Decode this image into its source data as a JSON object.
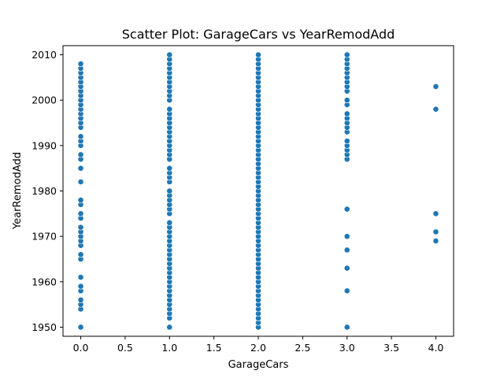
{
  "chart_data": {
    "type": "scatter",
    "title": "Scatter Plot: GarageCars vs YearRemodAdd",
    "xlabel": "GarageCars",
    "ylabel": "YearRemodAdd",
    "xlim": [
      -0.2,
      4.2
    ],
    "ylim": [
      1948,
      2012
    ],
    "xticks": [
      0.0,
      0.5,
      1.0,
      1.5,
      2.0,
      2.5,
      3.0,
      3.5,
      4.0
    ],
    "xtick_labels": [
      "0.0",
      "0.5",
      "1.0",
      "1.5",
      "2.0",
      "2.5",
      "3.0",
      "3.5",
      "4.0"
    ],
    "yticks": [
      1950,
      1960,
      1970,
      1980,
      1990,
      2000,
      2010
    ],
    "ytick_labels": [
      "1950",
      "1960",
      "1970",
      "1980",
      "1990",
      "2000",
      "2010"
    ],
    "grid": false,
    "marker_color": "#1f77b4",
    "series": [
      {
        "points": [
          [
            0,
            1950
          ],
          [
            0,
            1954
          ],
          [
            0,
            1955
          ],
          [
            0,
            1956
          ],
          [
            0,
            1958
          ],
          [
            0,
            1959
          ],
          [
            0,
            1961
          ],
          [
            0,
            1965
          ],
          [
            0,
            1966
          ],
          [
            0,
            1968
          ],
          [
            0,
            1969
          ],
          [
            0,
            1970
          ],
          [
            0,
            1971
          ],
          [
            0,
            1972
          ],
          [
            0,
            1974
          ],
          [
            0,
            1975
          ],
          [
            0,
            1977
          ],
          [
            0,
            1978
          ],
          [
            0,
            1982
          ],
          [
            0,
            1985
          ],
          [
            0,
            1987
          ],
          [
            0,
            1988
          ],
          [
            0,
            1990
          ],
          [
            0,
            1991
          ],
          [
            0,
            1992
          ],
          [
            0,
            1994
          ],
          [
            0,
            1995
          ],
          [
            0,
            1996
          ],
          [
            0,
            1997
          ],
          [
            0,
            1998
          ],
          [
            0,
            1999
          ],
          [
            0,
            2000
          ],
          [
            0,
            2001
          ],
          [
            0,
            2002
          ],
          [
            0,
            2003
          ],
          [
            0,
            2004
          ],
          [
            0,
            2005
          ],
          [
            0,
            2006
          ],
          [
            0,
            2007
          ],
          [
            0,
            2008
          ],
          [
            1,
            1950
          ],
          [
            1,
            1952
          ],
          [
            1,
            1953
          ],
          [
            1,
            1954
          ],
          [
            1,
            1955
          ],
          [
            1,
            1956
          ],
          [
            1,
            1957
          ],
          [
            1,
            1958
          ],
          [
            1,
            1959
          ],
          [
            1,
            1960
          ],
          [
            1,
            1961
          ],
          [
            1,
            1962
          ],
          [
            1,
            1963
          ],
          [
            1,
            1964
          ],
          [
            1,
            1965
          ],
          [
            1,
            1966
          ],
          [
            1,
            1967
          ],
          [
            1,
            1968
          ],
          [
            1,
            1969
          ],
          [
            1,
            1970
          ],
          [
            1,
            1971
          ],
          [
            1,
            1972
          ],
          [
            1,
            1973
          ],
          [
            1,
            1975
          ],
          [
            1,
            1976
          ],
          [
            1,
            1977
          ],
          [
            1,
            1978
          ],
          [
            1,
            1979
          ],
          [
            1,
            1980
          ],
          [
            1,
            1982
          ],
          [
            1,
            1983
          ],
          [
            1,
            1984
          ],
          [
            1,
            1985
          ],
          [
            1,
            1987
          ],
          [
            1,
            1988
          ],
          [
            1,
            1989
          ],
          [
            1,
            1990
          ],
          [
            1,
            1991
          ],
          [
            1,
            1992
          ],
          [
            1,
            1993
          ],
          [
            1,
            1994
          ],
          [
            1,
            1995
          ],
          [
            1,
            1996
          ],
          [
            1,
            1997
          ],
          [
            1,
            1998
          ],
          [
            1,
            2000
          ],
          [
            1,
            2001
          ],
          [
            1,
            2002
          ],
          [
            1,
            2003
          ],
          [
            1,
            2004
          ],
          [
            1,
            2005
          ],
          [
            1,
            2006
          ],
          [
            1,
            2007
          ],
          [
            1,
            2008
          ],
          [
            1,
            2009
          ],
          [
            1,
            2010
          ],
          [
            2,
            1950
          ],
          [
            2,
            1951
          ],
          [
            2,
            1952
          ],
          [
            2,
            1953
          ],
          [
            2,
            1954
          ],
          [
            2,
            1955
          ],
          [
            2,
            1956
          ],
          [
            2,
            1957
          ],
          [
            2,
            1958
          ],
          [
            2,
            1959
          ],
          [
            2,
            1960
          ],
          [
            2,
            1961
          ],
          [
            2,
            1962
          ],
          [
            2,
            1963
          ],
          [
            2,
            1964
          ],
          [
            2,
            1965
          ],
          [
            2,
            1966
          ],
          [
            2,
            1967
          ],
          [
            2,
            1968
          ],
          [
            2,
            1969
          ],
          [
            2,
            1970
          ],
          [
            2,
            1971
          ],
          [
            2,
            1972
          ],
          [
            2,
            1973
          ],
          [
            2,
            1974
          ],
          [
            2,
            1975
          ],
          [
            2,
            1976
          ],
          [
            2,
            1977
          ],
          [
            2,
            1978
          ],
          [
            2,
            1979
          ],
          [
            2,
            1980
          ],
          [
            2,
            1981
          ],
          [
            2,
            1982
          ],
          [
            2,
            1983
          ],
          [
            2,
            1984
          ],
          [
            2,
            1985
          ],
          [
            2,
            1986
          ],
          [
            2,
            1987
          ],
          [
            2,
            1988
          ],
          [
            2,
            1989
          ],
          [
            2,
            1990
          ],
          [
            2,
            1991
          ],
          [
            2,
            1992
          ],
          [
            2,
            1993
          ],
          [
            2,
            1994
          ],
          [
            2,
            1995
          ],
          [
            2,
            1996
          ],
          [
            2,
            1997
          ],
          [
            2,
            1998
          ],
          [
            2,
            1999
          ],
          [
            2,
            2000
          ],
          [
            2,
            2001
          ],
          [
            2,
            2002
          ],
          [
            2,
            2003
          ],
          [
            2,
            2004
          ],
          [
            2,
            2005
          ],
          [
            2,
            2006
          ],
          [
            2,
            2007
          ],
          [
            2,
            2008
          ],
          [
            2,
            2009
          ],
          [
            2,
            2010
          ],
          [
            3,
            1950
          ],
          [
            3,
            1958
          ],
          [
            3,
            1963
          ],
          [
            3,
            1967
          ],
          [
            3,
            1970
          ],
          [
            3,
            1976
          ],
          [
            3,
            1987
          ],
          [
            3,
            1988
          ],
          [
            3,
            1989
          ],
          [
            3,
            1990
          ],
          [
            3,
            1991
          ],
          [
            3,
            1993
          ],
          [
            3,
            1994
          ],
          [
            3,
            1995
          ],
          [
            3,
            1996
          ],
          [
            3,
            1997
          ],
          [
            3,
            1999
          ],
          [
            3,
            2000
          ],
          [
            3,
            2002
          ],
          [
            3,
            2003
          ],
          [
            3,
            2004
          ],
          [
            3,
            2005
          ],
          [
            3,
            2006
          ],
          [
            3,
            2007
          ],
          [
            3,
            2008
          ],
          [
            3,
            2009
          ],
          [
            3,
            2010
          ],
          [
            4,
            1969
          ],
          [
            4,
            1971
          ],
          [
            4,
            1975
          ],
          [
            4,
            1998
          ],
          [
            4,
            2003
          ]
        ]
      }
    ]
  }
}
